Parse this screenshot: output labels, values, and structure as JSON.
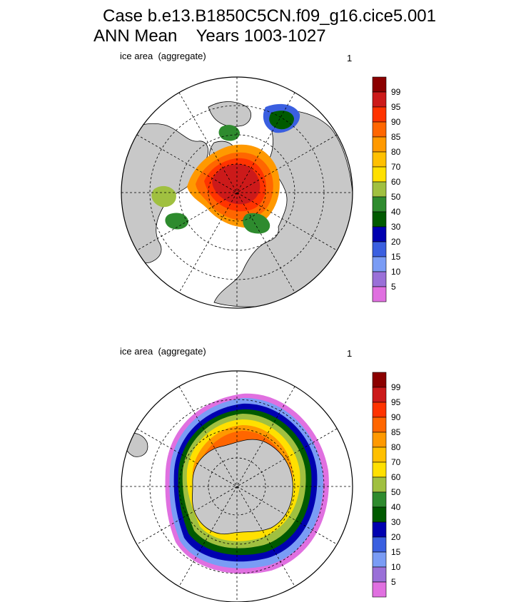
{
  "title": {
    "line1": "Case b.e13.B1850C5CN.f09_g16.cice5.001",
    "line2": "ANN Mean    Years 1003-1027"
  },
  "panels": [
    {
      "label": "ice area  (aggregate)",
      "number": "1",
      "hemisphere": "north"
    },
    {
      "label": "ice area  (aggregate)",
      "number": "1",
      "hemisphere": "south"
    }
  ],
  "colorbar": {
    "labels": [
      "99",
      "95",
      "90",
      "85",
      "80",
      "70",
      "60",
      "50",
      "40",
      "30",
      "20",
      "15",
      "10",
      "5"
    ],
    "colors": [
      "#8b0000",
      "#cc1a1a",
      "#ff3300",
      "#ff6600",
      "#ff9900",
      "#ffc000",
      "#ffe000",
      "#a0c040",
      "#2e8b2e",
      "#005a00",
      "#0000b0",
      "#3a5fe0",
      "#7a9cf5",
      "#9a70d8",
      "#e070e0"
    ]
  },
  "map_colors": {
    "land": "#c8c8c8",
    "ocean": "#ffffff"
  }
}
